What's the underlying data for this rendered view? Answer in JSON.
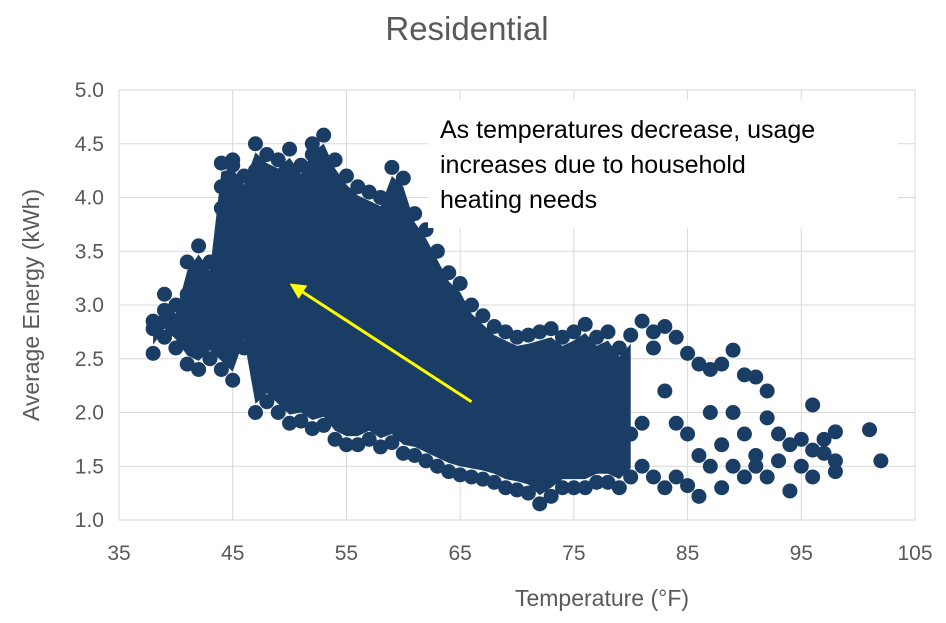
{
  "chart_data": {
    "type": "scatter",
    "title": "Residential",
    "xlabel": "Temperature (°F)",
    "ylabel": "Average Energy (kWh)",
    "xlim": [
      35,
      105
    ],
    "ylim": [
      1.0,
      5.0
    ],
    "xticks": [
      "35",
      "45",
      "55",
      "65",
      "75",
      "85",
      "95",
      "105"
    ],
    "yticks": [
      "1.0",
      "1.5",
      "2.0",
      "2.5",
      "3.0",
      "3.5",
      "4.0",
      "4.5",
      "5.0"
    ],
    "grid": true,
    "colors": {
      "points": "#1a3d66",
      "arrow": "#ffff00",
      "grid": "#d9d9d9"
    },
    "annotation": {
      "lines": [
        "As temperatures decrease, usage",
        "increases due to household",
        "heating needs"
      ],
      "arrow": {
        "from": [
          66,
          2.1
        ],
        "to": [
          50,
          3.2
        ]
      }
    },
    "series": [
      {
        "points": [
          [
            38,
            2.85
          ],
          [
            38,
            2.55
          ],
          [
            38,
            2.78
          ],
          [
            39,
            3.1
          ],
          [
            39,
            2.7
          ],
          [
            39,
            2.95
          ],
          [
            40,
            2.6
          ],
          [
            40,
            3.0
          ],
          [
            40,
            2.8
          ],
          [
            41,
            3.4
          ],
          [
            41,
            2.45
          ],
          [
            41,
            3.1
          ],
          [
            42,
            3.55
          ],
          [
            42,
            2.4
          ],
          [
            42,
            3.2
          ],
          [
            42,
            2.9
          ],
          [
            43,
            3.4
          ],
          [
            43,
            2.5
          ],
          [
            43,
            3.0
          ],
          [
            44,
            4.32
          ],
          [
            44,
            4.1
          ],
          [
            44,
            3.9
          ],
          [
            44,
            3.6
          ],
          [
            44,
            2.4
          ],
          [
            45,
            4.35
          ],
          [
            45,
            4.3
          ],
          [
            45,
            2.3
          ],
          [
            45,
            3.3
          ],
          [
            46,
            4.2
          ],
          [
            46,
            3.8
          ],
          [
            46,
            2.6
          ],
          [
            47,
            4.5
          ],
          [
            47,
            4.25
          ],
          [
            47,
            3.5
          ],
          [
            47,
            2.0
          ],
          [
            48,
            4.4
          ],
          [
            48,
            4.1
          ],
          [
            48,
            2.1
          ],
          [
            49,
            4.35
          ],
          [
            49,
            3.9
          ],
          [
            49,
            2.0
          ],
          [
            50,
            4.45
          ],
          [
            50,
            4.2
          ],
          [
            50,
            1.9
          ],
          [
            51,
            4.3
          ],
          [
            51,
            4.0
          ],
          [
            51,
            1.92
          ],
          [
            52,
            4.5
          ],
          [
            52,
            4.4
          ],
          [
            52,
            1.85
          ],
          [
            53,
            4.58
          ],
          [
            53,
            4.2
          ],
          [
            53,
            1.88
          ],
          [
            54,
            4.35
          ],
          [
            54,
            4.1
          ],
          [
            54,
            1.75
          ],
          [
            55,
            4.2
          ],
          [
            55,
            3.9
          ],
          [
            55,
            1.7
          ],
          [
            56,
            4.1
          ],
          [
            56,
            3.8
          ],
          [
            56,
            1.7
          ],
          [
            57,
            4.05
          ],
          [
            57,
            3.6
          ],
          [
            57,
            1.75
          ],
          [
            58,
            4.0
          ],
          [
            58,
            3.7
          ],
          [
            58,
            1.68
          ],
          [
            59,
            4.28
          ],
          [
            59,
            3.5
          ],
          [
            59,
            1.72
          ],
          [
            60,
            4.18
          ],
          [
            60,
            3.4
          ],
          [
            60,
            1.62
          ],
          [
            61,
            3.85
          ],
          [
            61,
            3.3
          ],
          [
            61,
            1.6
          ],
          [
            62,
            3.7
          ],
          [
            62,
            3.2
          ],
          [
            62,
            1.55
          ],
          [
            63,
            3.5
          ],
          [
            63,
            3.1
          ],
          [
            63,
            1.5
          ],
          [
            64,
            3.3
          ],
          [
            64,
            2.9
          ],
          [
            64,
            1.45
          ],
          [
            65,
            3.2
          ],
          [
            65,
            2.8
          ],
          [
            65,
            1.42
          ],
          [
            66,
            3.0
          ],
          [
            66,
            2.6
          ],
          [
            66,
            1.4
          ],
          [
            67,
            2.9
          ],
          [
            67,
            2.4
          ],
          [
            67,
            1.38
          ],
          [
            68,
            2.8
          ],
          [
            68,
            2.3
          ],
          [
            68,
            1.35
          ],
          [
            69,
            2.75
          ],
          [
            69,
            2.2
          ],
          [
            69,
            1.3
          ],
          [
            70,
            2.7
          ],
          [
            70,
            2.0
          ],
          [
            70,
            1.28
          ],
          [
            71,
            2.72
          ],
          [
            71,
            1.9
          ],
          [
            71,
            1.25
          ],
          [
            72,
            2.75
          ],
          [
            72,
            1.8
          ],
          [
            72,
            1.15
          ],
          [
            73,
            2.78
          ],
          [
            73,
            1.7
          ],
          [
            73,
            1.22
          ],
          [
            74,
            2.7
          ],
          [
            74,
            1.6
          ],
          [
            74,
            1.3
          ],
          [
            75,
            2.75
          ],
          [
            75,
            1.55
          ],
          [
            75,
            1.3
          ],
          [
            76,
            2.82
          ],
          [
            76,
            1.6
          ],
          [
            76,
            1.3
          ],
          [
            77,
            2.7
          ],
          [
            77,
            1.5
          ],
          [
            77,
            1.35
          ],
          [
            78,
            2.75
          ],
          [
            78,
            1.55
          ],
          [
            78,
            1.35
          ],
          [
            79,
            2.6
          ],
          [
            79,
            1.5
          ],
          [
            79,
            1.3
          ],
          [
            80,
            2.72
          ],
          [
            80,
            1.8
          ],
          [
            80,
            1.4
          ],
          [
            81,
            2.85
          ],
          [
            81,
            1.9
          ],
          [
            81,
            1.5
          ],
          [
            82,
            2.75
          ],
          [
            82,
            2.6
          ],
          [
            82,
            1.4
          ],
          [
            83,
            2.8
          ],
          [
            83,
            2.2
          ],
          [
            83,
            1.3
          ],
          [
            84,
            2.7
          ],
          [
            84,
            1.9
          ],
          [
            84,
            1.4
          ],
          [
            85,
            2.55
          ],
          [
            85,
            1.8
          ],
          [
            85,
            1.32
          ],
          [
            86,
            2.45
          ],
          [
            86,
            1.22
          ],
          [
            86,
            1.6
          ],
          [
            87,
            2.4
          ],
          [
            87,
            2.0
          ],
          [
            87,
            1.5
          ],
          [
            88,
            2.45
          ],
          [
            88,
            1.7
          ],
          [
            88,
            1.3
          ],
          [
            89,
            2.58
          ],
          [
            89,
            2.0
          ],
          [
            89,
            1.5
          ],
          [
            90,
            2.35
          ],
          [
            90,
            1.8
          ],
          [
            90,
            1.4
          ],
          [
            91,
            2.33
          ],
          [
            91,
            1.6
          ],
          [
            91,
            1.5
          ],
          [
            92,
            2.2
          ],
          [
            92,
            1.95
          ],
          [
            92,
            1.4
          ],
          [
            93,
            1.8
          ],
          [
            93,
            1.55
          ],
          [
            94,
            1.7
          ],
          [
            94,
            1.27
          ],
          [
            95,
            1.75
          ],
          [
            95,
            1.5
          ],
          [
            96,
            2.07
          ],
          [
            96,
            1.65
          ],
          [
            96,
            1.4
          ],
          [
            97,
            1.75
          ],
          [
            97,
            1.62
          ],
          [
            98,
            1.82
          ],
          [
            98,
            1.55
          ],
          [
            98,
            1.45
          ],
          [
            101,
            1.84
          ],
          [
            102,
            1.55
          ]
        ]
      }
    ]
  }
}
